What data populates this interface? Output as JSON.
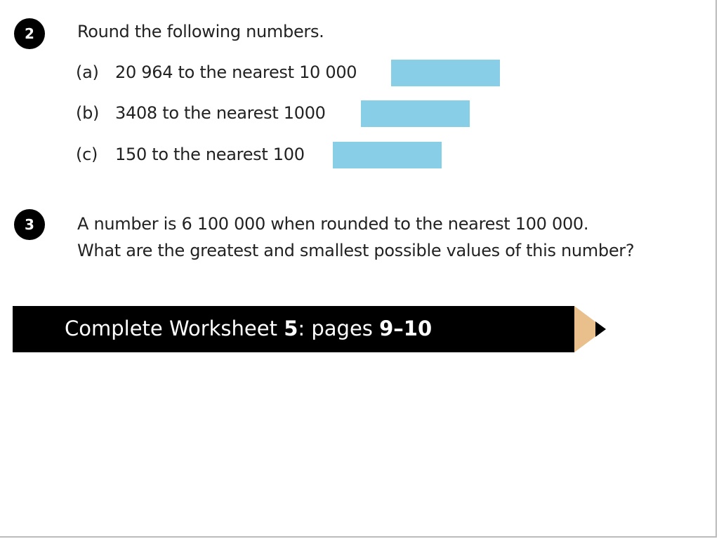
{
  "q2": {
    "number": "2",
    "prompt": "Round the following numbers.",
    "items": [
      {
        "label": "(a)",
        "text": "20 964 to the nearest 10 000"
      },
      {
        "label": "(b)",
        "text": "3408 to the nearest 1000"
      },
      {
        "label": "(c)",
        "text": "150 to the nearest 100"
      }
    ]
  },
  "q3": {
    "number": "3",
    "line1": "A number is 6 100 000 when rounded to the nearest 100 000.",
    "line2": "What are the greatest and smallest possible values of this number?"
  },
  "banner": {
    "prefix": "Complete Worksheet ",
    "worksheet": "5",
    "middle": ": pages ",
    "pages": "9–10"
  },
  "colors": {
    "answer_box": "#87cee6",
    "pencil_tip": "#e9c08c"
  }
}
